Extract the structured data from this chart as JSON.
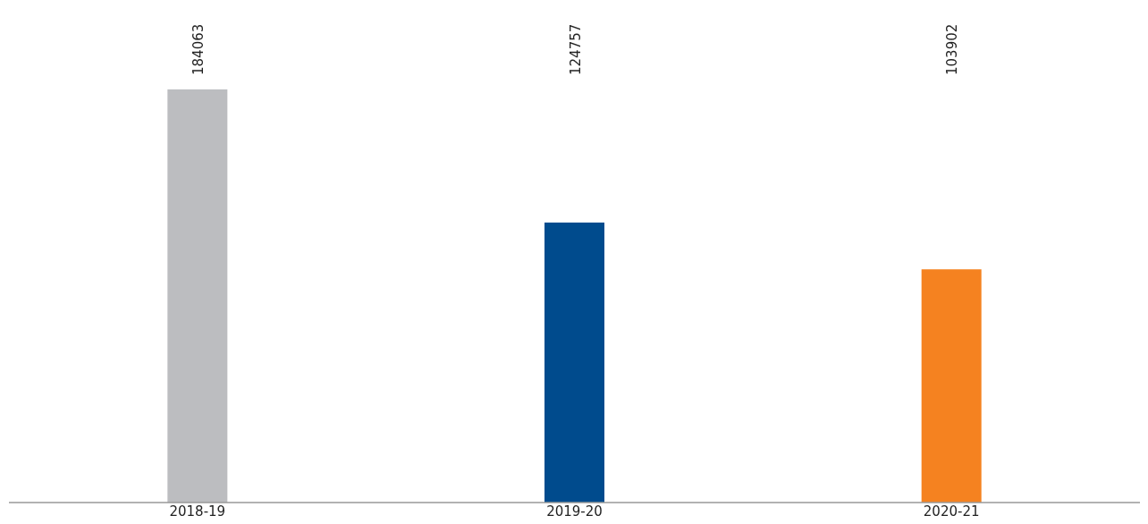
{
  "chart_data": {
    "type": "bar",
    "categories": [
      "2018-19",
      "2019-20",
      "2020-21"
    ],
    "values": [
      184063,
      124757,
      103902
    ],
    "colors": [
      "#bcbdc0",
      "#004b8d",
      "#f58220"
    ],
    "data_labels": true
  }
}
